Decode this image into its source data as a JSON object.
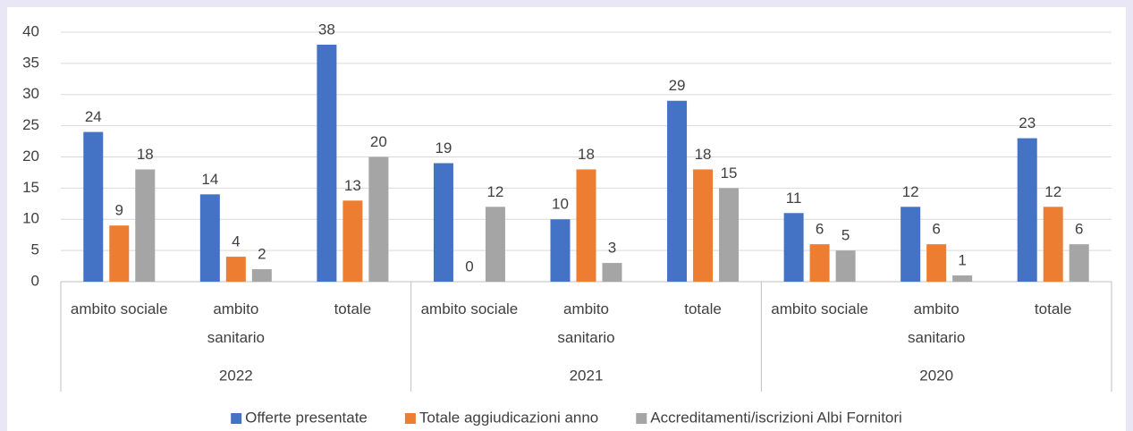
{
  "chart_data": {
    "type": "bar",
    "groups": [
      {
        "label": "2022",
        "categories": [
          "ambito sociale",
          "ambito sanitario",
          "totale"
        ]
      },
      {
        "label": "2021",
        "categories": [
          "ambito sociale",
          "ambito sanitario",
          "totale"
        ]
      },
      {
        "label": "2020",
        "categories": [
          "ambito sociale",
          "ambito sanitario",
          "totale"
        ]
      }
    ],
    "series": [
      {
        "name": "Offerte presentate",
        "color": "#4472c4",
        "values": [
          24,
          14,
          38,
          19,
          10,
          29,
          11,
          12,
          23
        ]
      },
      {
        "name": "Totale aggiudicazioni anno",
        "color": "#ed7d31",
        "values": [
          9,
          4,
          13,
          0,
          18,
          18,
          6,
          6,
          12
        ]
      },
      {
        "name": "Accreditamenti/iscrizioni Albi Fornitori",
        "color": "#a5a5a5",
        "values": [
          18,
          2,
          20,
          12,
          3,
          15,
          5,
          1,
          6
        ]
      }
    ],
    "ylim": [
      0,
      40
    ],
    "yticks": [
      0,
      5,
      10,
      15,
      20,
      25,
      30,
      35,
      40
    ],
    "grid": true,
    "legend": "bottom"
  }
}
